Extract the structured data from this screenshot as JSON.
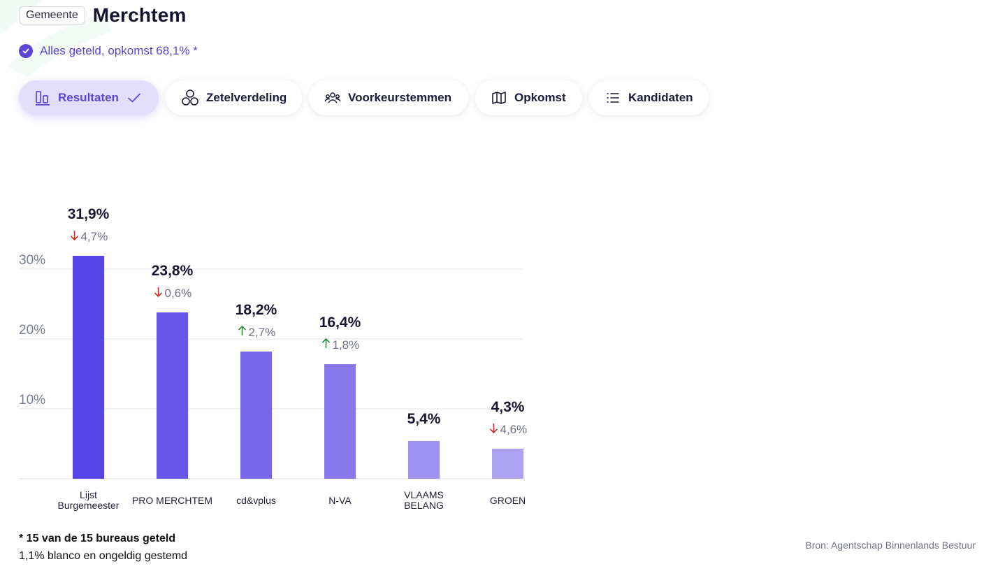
{
  "header": {
    "badge": "Gemeente",
    "title": "Merchtem"
  },
  "status": {
    "text": "Alles geteld, opkomst 68,1% *",
    "icon": "check-circle-icon"
  },
  "tabs": [
    {
      "label": "Resultaten",
      "icon": "bar-chart-icon",
      "active": true
    },
    {
      "label": "Zetelverdeling",
      "icon": "circles-icon",
      "active": false
    },
    {
      "label": "Voorkeurstemmen",
      "icon": "people-icon",
      "active": false
    },
    {
      "label": "Opkomst",
      "icon": "map-icon",
      "active": false
    },
    {
      "label": "Kandidaten",
      "icon": "list-icon",
      "active": false
    }
  ],
  "chart_data": {
    "type": "bar",
    "categories": [
      [
        "Lijst",
        "Burgemeester"
      ],
      [
        "PRO MERCHTEM"
      ],
      [
        "cd&vplus"
      ],
      [
        "N-VA"
      ],
      [
        "VLAAMS",
        "BELANG"
      ],
      [
        "GROEN"
      ]
    ],
    "values": [
      31.9,
      23.8,
      18.2,
      16.4,
      5.4,
      4.3
    ],
    "value_labels": [
      "31,9%",
      "23,8%",
      "18,2%",
      "16,4%",
      "5,4%",
      "4,3%"
    ],
    "changes": [
      {
        "dir": "down",
        "label": "4,7%"
      },
      {
        "dir": "down",
        "label": "0,6%"
      },
      {
        "dir": "up",
        "label": "2,7%"
      },
      {
        "dir": "up",
        "label": "1,8%"
      },
      null,
      {
        "dir": "down",
        "label": "4,6%"
      }
    ],
    "yticks": [
      10,
      20,
      30
    ],
    "ytick_labels": [
      "10%",
      "20%",
      "30%"
    ],
    "ylim": [
      0,
      30
    ],
    "grid": true,
    "colors": [
      "#5644e6",
      "#6a56e8",
      "#7a68ea",
      "#8a79ec",
      "#9e90ef",
      "#ada2f1"
    ],
    "up_color": "#2e8b3e",
    "down_color": "#c4312b"
  },
  "footnote": {
    "line1": "* 15 van de 15 bureaus geteld",
    "line2": "1,1% blanco en ongeldig gestemd"
  },
  "source": "Bron: Agentschap Binnenlands Bestuur"
}
